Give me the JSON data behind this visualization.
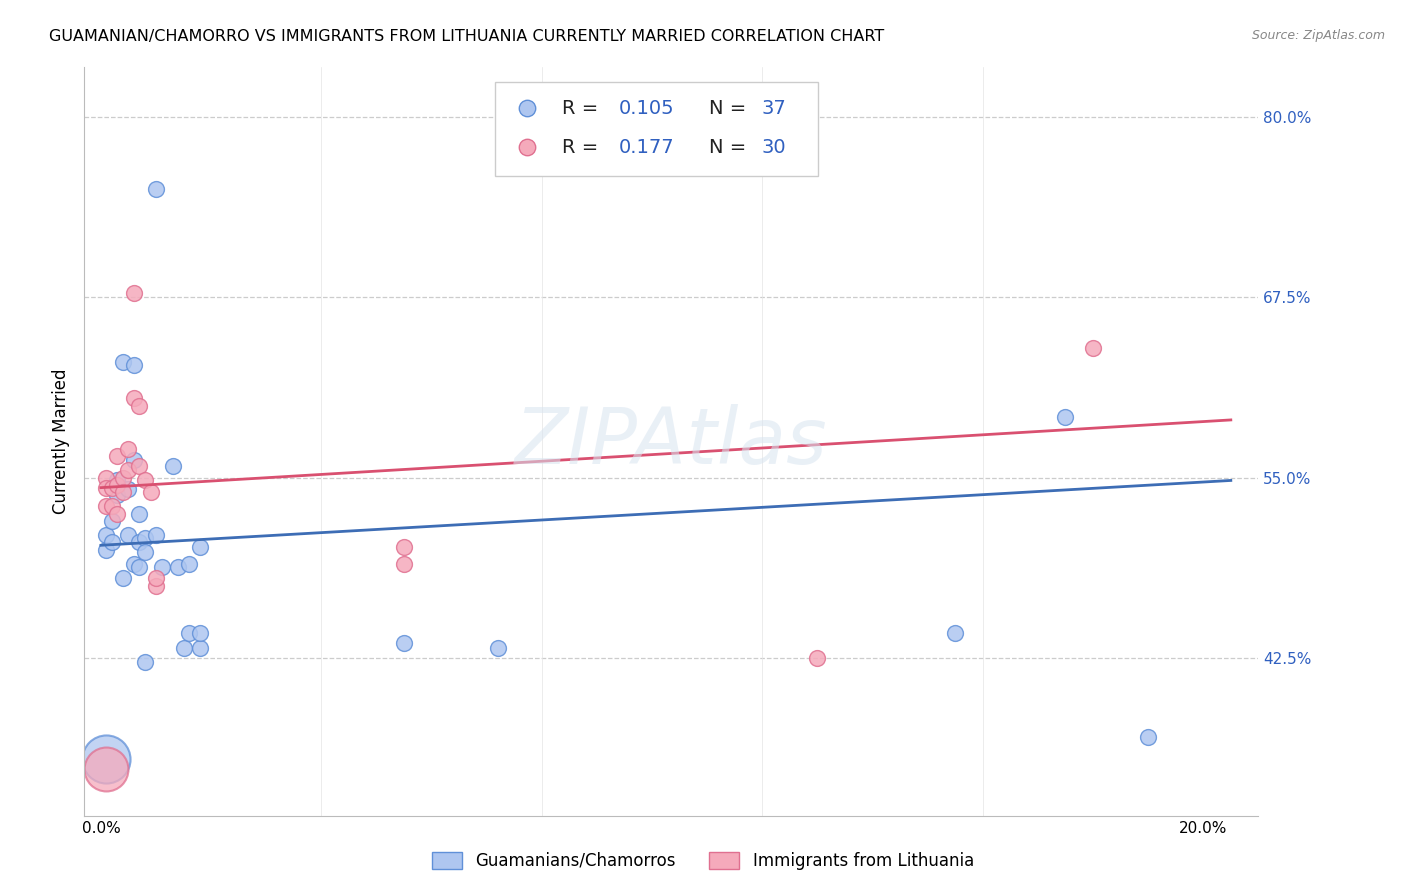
{
  "title": "GUAMANIAN/CHAMORRO VS IMMIGRANTS FROM LITHUANIA CURRENTLY MARRIED CORRELATION CHART",
  "source": "Source: ZipAtlas.com",
  "ylabel": "Currently Married",
  "yticks": [
    0.425,
    0.55,
    0.675,
    0.8
  ],
  "ytick_labels": [
    "42.5%",
    "55.0%",
    "67.5%",
    "80.0%"
  ],
  "xtick_positions": [
    0.0,
    0.04,
    0.08,
    0.12,
    0.16,
    0.2
  ],
  "xtick_labels": [
    "0.0%",
    "",
    "",
    "",
    "",
    "20.0%"
  ],
  "xlim": [
    -0.003,
    0.21
  ],
  "ylim": [
    0.315,
    0.835
  ],
  "blue_face": "#AEC6F0",
  "blue_edge": "#6090D8",
  "pink_face": "#F5AABB",
  "pink_edge": "#E07090",
  "blue_line": "#3D6DB5",
  "pink_line": "#D95070",
  "blue_label": "Guamanians/Chamorros",
  "pink_label": "Immigrants from Lithuania",
  "blue_R": "0.105",
  "blue_N": "37",
  "pink_R": "0.177",
  "pink_N": "30",
  "legend_text_color": "#3060C0",
  "legend_label_color": "#222222",
  "blue_trend_y0": 0.503,
  "blue_trend_y1": 0.548,
  "pink_trend_y0": 0.543,
  "pink_trend_y1": 0.59,
  "blue_points": [
    [
      0.001,
      0.51
    ],
    [
      0.001,
      0.5
    ],
    [
      0.002,
      0.52
    ],
    [
      0.002,
      0.505
    ],
    [
      0.003,
      0.548
    ],
    [
      0.003,
      0.538
    ],
    [
      0.004,
      0.63
    ],
    [
      0.004,
      0.48
    ],
    [
      0.005,
      0.51
    ],
    [
      0.005,
      0.542
    ],
    [
      0.006,
      0.49
    ],
    [
      0.006,
      0.628
    ],
    [
      0.006,
      0.562
    ],
    [
      0.007,
      0.525
    ],
    [
      0.007,
      0.505
    ],
    [
      0.007,
      0.488
    ],
    [
      0.008,
      0.508
    ],
    [
      0.008,
      0.498
    ],
    [
      0.008,
      0.422
    ],
    [
      0.01,
      0.75
    ],
    [
      0.01,
      0.51
    ],
    [
      0.011,
      0.488
    ],
    [
      0.013,
      0.558
    ],
    [
      0.014,
      0.488
    ],
    [
      0.015,
      0.432
    ],
    [
      0.016,
      0.442
    ],
    [
      0.016,
      0.49
    ],
    [
      0.018,
      0.502
    ],
    [
      0.018,
      0.432
    ],
    [
      0.018,
      0.442
    ],
    [
      0.055,
      0.435
    ],
    [
      0.072,
      0.432
    ],
    [
      0.155,
      0.442
    ],
    [
      0.175,
      0.592
    ],
    [
      0.19,
      0.37
    ]
  ],
  "blue_large": [
    0.001,
    0.355
  ],
  "blue_large_size": 1200,
  "pink_points": [
    [
      0.001,
      0.55
    ],
    [
      0.001,
      0.543
    ],
    [
      0.001,
      0.53
    ],
    [
      0.002,
      0.53
    ],
    [
      0.002,
      0.543
    ],
    [
      0.003,
      0.565
    ],
    [
      0.003,
      0.545
    ],
    [
      0.003,
      0.525
    ],
    [
      0.004,
      0.55
    ],
    [
      0.004,
      0.54
    ],
    [
      0.005,
      0.57
    ],
    [
      0.005,
      0.555
    ],
    [
      0.006,
      0.678
    ],
    [
      0.006,
      0.605
    ],
    [
      0.007,
      0.6
    ],
    [
      0.007,
      0.558
    ],
    [
      0.008,
      0.548
    ],
    [
      0.009,
      0.54
    ],
    [
      0.01,
      0.475
    ],
    [
      0.01,
      0.48
    ],
    [
      0.055,
      0.49
    ],
    [
      0.055,
      0.502
    ],
    [
      0.13,
      0.425
    ],
    [
      0.18,
      0.64
    ]
  ],
  "pink_large": [
    0.001,
    0.348
  ],
  "pink_large_size": 1000
}
